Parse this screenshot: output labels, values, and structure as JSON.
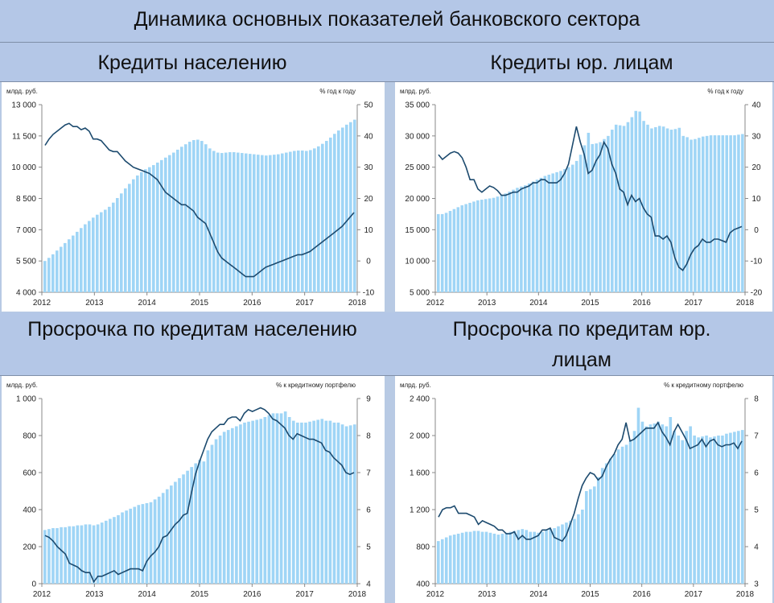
{
  "title": "Динамика основных показателей банковского сектора",
  "chart_data": [
    {
      "type": "bar",
      "title": "Кредиты населению",
      "left_unit": "млрд. руб.",
      "right_unit": "% год к году",
      "x_labels": [
        "2012",
        "2013",
        "2014",
        "2015",
        "2016",
        "2017",
        "2018"
      ],
      "ylim_left": [
        4000,
        13000
      ],
      "ytick_left": [
        "4 000",
        "5 500",
        "7 000",
        "8 500",
        "10 000",
        "11 500",
        "13 000"
      ],
      "ylim_right": [
        -10,
        50
      ],
      "ytick_right": [
        "-10",
        "0",
        "10",
        "20",
        "30",
        "40",
        "50"
      ],
      "series": [
        {
          "axis": "left",
          "kind": "bar",
          "values": [
            5500,
            5650,
            5820,
            6000,
            6180,
            6360,
            6540,
            6720,
            6900,
            7080,
            7260,
            7420,
            7580,
            7720,
            7840,
            7960,
            8100,
            8300,
            8520,
            8740,
            8980,
            9200,
            9420,
            9600,
            9760,
            9900,
            10000,
            10100,
            10220,
            10340,
            10460,
            10580,
            10700,
            10840,
            10980,
            11100,
            11220,
            11300,
            11320,
            11260,
            11100,
            10900,
            10780,
            10700,
            10680,
            10700,
            10720,
            10720,
            10700,
            10680,
            10660,
            10640,
            10620,
            10600,
            10580,
            10560,
            10580,
            10600,
            10620,
            10660,
            10700,
            10740,
            10780,
            10800,
            10800,
            10780,
            10820,
            10900,
            11000,
            11120,
            11260,
            11420,
            11600,
            11760,
            11900,
            12040,
            12160,
            12280
          ]
        },
        {
          "axis": "right",
          "kind": "line",
          "values": [
            37,
            39,
            40.5,
            41.5,
            42.5,
            43.5,
            44,
            43,
            43,
            42,
            42.5,
            41.5,
            39,
            39,
            38.5,
            37,
            35.5,
            35,
            35,
            33.5,
            32,
            31,
            30,
            29.5,
            29,
            28.5,
            28,
            27,
            26,
            24,
            22,
            21,
            20,
            19,
            18,
            18,
            17,
            16,
            14,
            13,
            12,
            9,
            6,
            3,
            1,
            0,
            -1,
            -2,
            -3,
            -4,
            -5,
            -5,
            -5,
            -4,
            -3,
            -2,
            -1.5,
            -1,
            -0.5,
            0,
            0.5,
            1,
            1.5,
            2,
            2,
            2.5,
            3,
            4,
            5,
            6,
            7,
            8,
            9,
            10,
            11,
            12.5,
            14,
            15.5
          ]
        }
      ]
    },
    {
      "type": "bar",
      "title": "Кредиты юр. лицам",
      "left_unit": "млрд. руб.",
      "right_unit": "% год к году",
      "x_labels": [
        "2012",
        "2013",
        "2014",
        "2015",
        "2016",
        "2017",
        "2018"
      ],
      "ylim_left": [
        5000,
        35000
      ],
      "ytick_left": [
        "5 000",
        "10 000",
        "15 000",
        "20 000",
        "25 000",
        "30 000",
        "35 000"
      ],
      "ylim_right": [
        -20,
        40
      ],
      "ytick_right": [
        "-20",
        "-10",
        "0",
        "10",
        "20",
        "30",
        "40"
      ],
      "series": [
        {
          "axis": "left",
          "kind": "bar",
          "values": [
            17500,
            17500,
            17700,
            18000,
            18300,
            18600,
            18900,
            19100,
            19300,
            19500,
            19700,
            19800,
            19900,
            20000,
            20100,
            20300,
            20500,
            20800,
            21100,
            21400,
            21700,
            21900,
            22100,
            22400,
            22700,
            23000,
            23300,
            23600,
            23800,
            24000,
            24200,
            24400,
            24700,
            25000,
            25400,
            26000,
            27000,
            28500,
            30500,
            28700,
            28800,
            29000,
            29500,
            30000,
            31000,
            31800,
            31700,
            31600,
            32200,
            33000,
            34000,
            33900,
            32400,
            31800,
            31200,
            31400,
            31600,
            31500,
            31200,
            31000,
            31100,
            31300,
            30000,
            29800,
            29400,
            29500,
            29700,
            29900,
            30000,
            30100,
            30100,
            30100,
            30100,
            30100,
            30100,
            30100,
            30200,
            30300
          ]
        },
        {
          "axis": "right",
          "kind": "line",
          "values": [
            24,
            22.5,
            23.5,
            24.5,
            25,
            24.5,
            23,
            20,
            16,
            16,
            13,
            12,
            13,
            14,
            13.5,
            12.5,
            11,
            11,
            11.5,
            12,
            12,
            13,
            13.5,
            14,
            15,
            15,
            16,
            16,
            15,
            15,
            15,
            16,
            18,
            21,
            27,
            33,
            28,
            24,
            18,
            19,
            22,
            24,
            28,
            26,
            21,
            18,
            13,
            12,
            8,
            11,
            9,
            10,
            7,
            5,
            4,
            -2,
            -2,
            -3,
            -2,
            -4,
            -9,
            -12,
            -13,
            -11,
            -8,
            -6,
            -5,
            -3,
            -4,
            -4,
            -3,
            -3,
            -3.5,
            -4,
            -1,
            0,
            0.5,
            1
          ]
        }
      ]
    },
    {
      "type": "bar",
      "title": "Просрочка по кредитам населению",
      "left_unit": "млрд. руб.",
      "right_unit": "% к кредитному портфелю",
      "x_labels": [
        "2012",
        "2013",
        "2014",
        "2015",
        "2016",
        "2017",
        "2018"
      ],
      "ylim_left": [
        0,
        1000
      ],
      "ytick_left": [
        "0",
        "200",
        "400",
        "600",
        "800",
        "1 000"
      ],
      "ylim_right": [
        4,
        9
      ],
      "ytick_right": [
        "4",
        "5",
        "6",
        "7",
        "8",
        "9"
      ],
      "series": [
        {
          "axis": "left",
          "kind": "bar",
          "values": [
            290,
            295,
            300,
            300,
            305,
            305,
            310,
            310,
            315,
            315,
            320,
            320,
            315,
            320,
            330,
            340,
            350,
            360,
            370,
            385,
            395,
            405,
            415,
            425,
            430,
            435,
            440,
            455,
            470,
            490,
            510,
            530,
            550,
            570,
            590,
            610,
            630,
            650,
            670,
            660,
            720,
            750,
            780,
            800,
            820,
            830,
            840,
            850,
            860,
            870,
            875,
            880,
            885,
            890,
            900,
            910,
            920,
            920,
            920,
            930,
            900,
            880,
            870,
            870,
            870,
            875,
            880,
            885,
            890,
            880,
            880,
            870,
            870,
            860,
            850,
            855,
            860
          ]
        },
        {
          "axis": "right",
          "kind": "line",
          "values": [
            5.3,
            5.25,
            5.15,
            5.0,
            4.9,
            4.8,
            4.55,
            4.5,
            4.45,
            4.35,
            4.3,
            4.3,
            4.05,
            4.2,
            4.2,
            4.25,
            4.3,
            4.35,
            4.25,
            4.3,
            4.35,
            4.4,
            4.4,
            4.4,
            4.35,
            4.6,
            4.75,
            4.85,
            5.0,
            5.25,
            5.3,
            5.45,
            5.6,
            5.7,
            5.85,
            5.9,
            6.45,
            6.95,
            7.3,
            7.6,
            7.9,
            8.1,
            8.2,
            8.3,
            8.3,
            8.45,
            8.5,
            8.5,
            8.4,
            8.6,
            8.7,
            8.65,
            8.7,
            8.75,
            8.7,
            8.6,
            8.45,
            8.4,
            8.3,
            8.2,
            8.0,
            7.9,
            8.05,
            8.0,
            7.95,
            7.9,
            7.9,
            7.85,
            7.8,
            7.6,
            7.55,
            7.4,
            7.3,
            7.2,
            7.0,
            6.95,
            7.0
          ]
        }
      ]
    },
    {
      "type": "bar",
      "title": "Просрочка по кредитам юр. лицам",
      "left_unit": "млрд. руб.",
      "right_unit": "% к кредитному портфелю",
      "x_labels": [
        "2012",
        "2013",
        "2014",
        "2015",
        "2016",
        "2017",
        "2018"
      ],
      "ylim_left": [
        400,
        2400
      ],
      "ytick_left": [
        "400",
        "800",
        "1 200",
        "1 600",
        "2 000",
        "2 400"
      ],
      "ylim_right": [
        3,
        8
      ],
      "ytick_right": [
        "3",
        "4",
        "5",
        "6",
        "7",
        "8"
      ],
      "series": [
        {
          "axis": "left",
          "kind": "bar",
          "values": [
            860,
            880,
            900,
            920,
            930,
            940,
            950,
            960,
            960,
            970,
            970,
            960,
            960,
            950,
            940,
            930,
            940,
            950,
            960,
            970,
            980,
            990,
            980,
            960,
            960,
            950,
            960,
            980,
            990,
            1000,
            1020,
            1040,
            1060,
            1080,
            1100,
            1150,
            1200,
            1400,
            1420,
            1450,
            1550,
            1650,
            1700,
            1750,
            1800,
            1850,
            1880,
            1900,
            1950,
            2050,
            2300,
            2150,
            2100,
            2120,
            2130,
            2150,
            2120,
            2100,
            2200,
            2050,
            2000,
            1950,
            2050,
            2100,
            2000,
            1980,
            1990,
            2000,
            1980,
            1990,
            2000,
            2000,
            2020,
            2030,
            2040,
            2050,
            2060
          ]
        },
        {
          "axis": "right",
          "kind": "line",
          "values": [
            4.8,
            5.0,
            5.05,
            5.05,
            5.1,
            4.9,
            4.9,
            4.9,
            4.85,
            4.8,
            4.6,
            4.7,
            4.65,
            4.6,
            4.55,
            4.45,
            4.45,
            4.35,
            4.35,
            4.4,
            4.2,
            4.3,
            4.2,
            4.2,
            4.25,
            4.3,
            4.45,
            4.45,
            4.5,
            4.25,
            4.2,
            4.15,
            4.3,
            4.6,
            4.9,
            5.3,
            5.65,
            5.85,
            6.0,
            5.95,
            5.8,
            5.9,
            6.15,
            6.35,
            6.5,
            6.75,
            6.9,
            7.35,
            6.85,
            6.9,
            7.0,
            7.1,
            7.2,
            7.2,
            7.2,
            7.35,
            7.1,
            6.95,
            6.75,
            7.1,
            7.3,
            7.1,
            6.9,
            6.65,
            6.7,
            6.75,
            6.9,
            6.7,
            6.85,
            6.9,
            6.75,
            6.7,
            6.75,
            6.75,
            6.8,
            6.65,
            6.85
          ]
        }
      ]
    }
  ]
}
